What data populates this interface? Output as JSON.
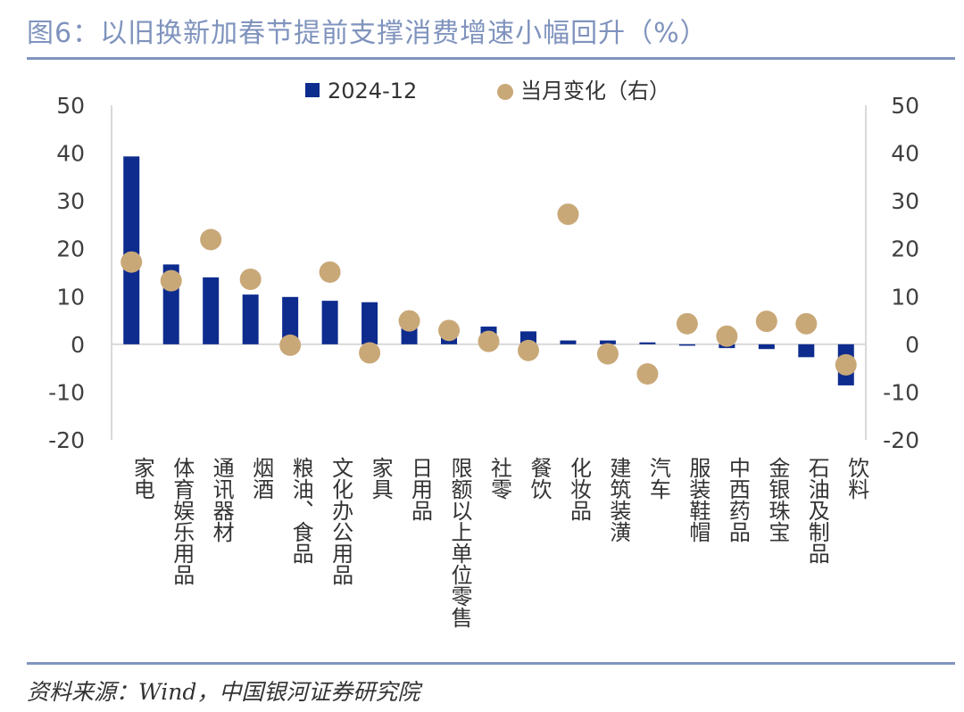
{
  "header": {
    "title": "图6：以旧换新加春节提前支撑消费增速小幅回升（%）"
  },
  "footer": {
    "source": "资料来源：Wind，中国银河证券研究院"
  },
  "colors": {
    "bar": "#0e2c8e",
    "dot": "#c9a878",
    "accent": "#8094bd"
  },
  "chart_data": {
    "type": "bar",
    "categories": [
      "家电",
      "体育娱乐用品",
      "通讯器材",
      "烟酒",
      "粮油、食品",
      "文化办公用品",
      "家具",
      "日用品",
      "限额以上单位零售",
      "社零",
      "餐饮",
      "化妆品",
      "建筑装潢",
      "汽车",
      "服装鞋帽",
      "中西药品",
      "金银珠宝",
      "石油及制品",
      "饮料"
    ],
    "series": [
      {
        "name": "2024-12",
        "type": "bar",
        "axis": "left",
        "values": [
          39.3,
          16.7,
          14.0,
          10.4,
          9.9,
          9.1,
          8.8,
          4.3,
          1.8,
          3.7,
          2.7,
          0.8,
          0.8,
          0.4,
          -0.3,
          -0.8,
          -1.0,
          -2.7,
          -8.6
        ]
      },
      {
        "name": "当月变化（右）",
        "type": "scatter",
        "axis": "right",
        "values": [
          17.2,
          13.3,
          21.9,
          13.6,
          -0.2,
          15.1,
          -1.8,
          4.9,
          2.9,
          0.6,
          -1.3,
          27.2,
          -2.0,
          -6.2,
          4.3,
          1.7,
          4.8,
          4.3,
          -4.3
        ]
      }
    ],
    "yticks": [
      "50",
      "40",
      "30",
      "20",
      "10",
      "0",
      "-10",
      "-20"
    ],
    "ylim": [
      -20,
      50
    ],
    "y2lim": [
      -20,
      50
    ],
    "legend": "top-center",
    "grid": false
  }
}
